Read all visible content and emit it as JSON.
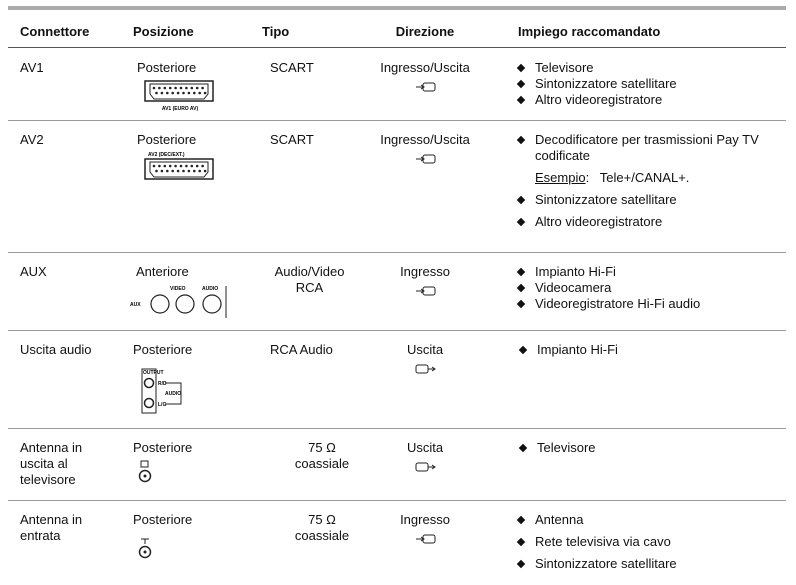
{
  "header": {
    "columns": [
      "Connettore",
      "Posizione",
      "Tipo",
      "Direzione",
      "Impiego raccomandato"
    ]
  },
  "rows": [
    {
      "connector": "AV1",
      "position": "Posteriore",
      "icon_labels": [
        "AV1 (EURO AV)"
      ],
      "type": "SCART",
      "direction": "Ingresso/Uscita",
      "usage": [
        "Televisore",
        "Sintonizzatore satellitare",
        "Altro videoregistratore"
      ]
    },
    {
      "connector": "AV2",
      "position": "Posteriore",
      "icon_labels": [
        "AV2 (DEC/EXT.)"
      ],
      "type": "SCART",
      "direction": "Ingresso/Uscita",
      "usage": [
        "Decodificatore per trasmissioni Pay TV codificate",
        "Sintonizzatore satellitare",
        "Altro videoregistratore"
      ],
      "example": {
        "label": "Esempio",
        "text": ":   Tele+/CANAL+."
      }
    },
    {
      "connector": "AUX",
      "position": "Anteriore",
      "icon_labels": [
        "VIDEO",
        "AUDIO",
        "AUX"
      ],
      "type": "Audio/Video RCA",
      "direction": "Ingresso",
      "usage": [
        "Impianto Hi-Fi",
        "Videocamera",
        "Videoregistratore Hi-Fi audio"
      ]
    },
    {
      "connector": "Uscita audio",
      "position": "Posteriore",
      "icon_labels": [
        "OUTPUT",
        "R/D",
        "AUDIO",
        "L/G"
      ],
      "type": "RCA Audio",
      "direction": "Uscita",
      "usage": [
        "Impianto Hi-Fi"
      ]
    },
    {
      "connector": "Antenna in uscita al televisore",
      "position": "Posteriore",
      "icon_labels": [],
      "type": "75 Ω coassiale",
      "direction": "Uscita",
      "usage": [
        "Televisore"
      ]
    },
    {
      "connector": "Antenna in entrata",
      "position": "Posteriore",
      "icon_labels": [],
      "type": "75 Ω coassiale",
      "direction": "Ingresso",
      "usage": [
        "Antenna",
        "Rete televisiva via cavo",
        "Sintonizzatore satellitare"
      ]
    }
  ]
}
